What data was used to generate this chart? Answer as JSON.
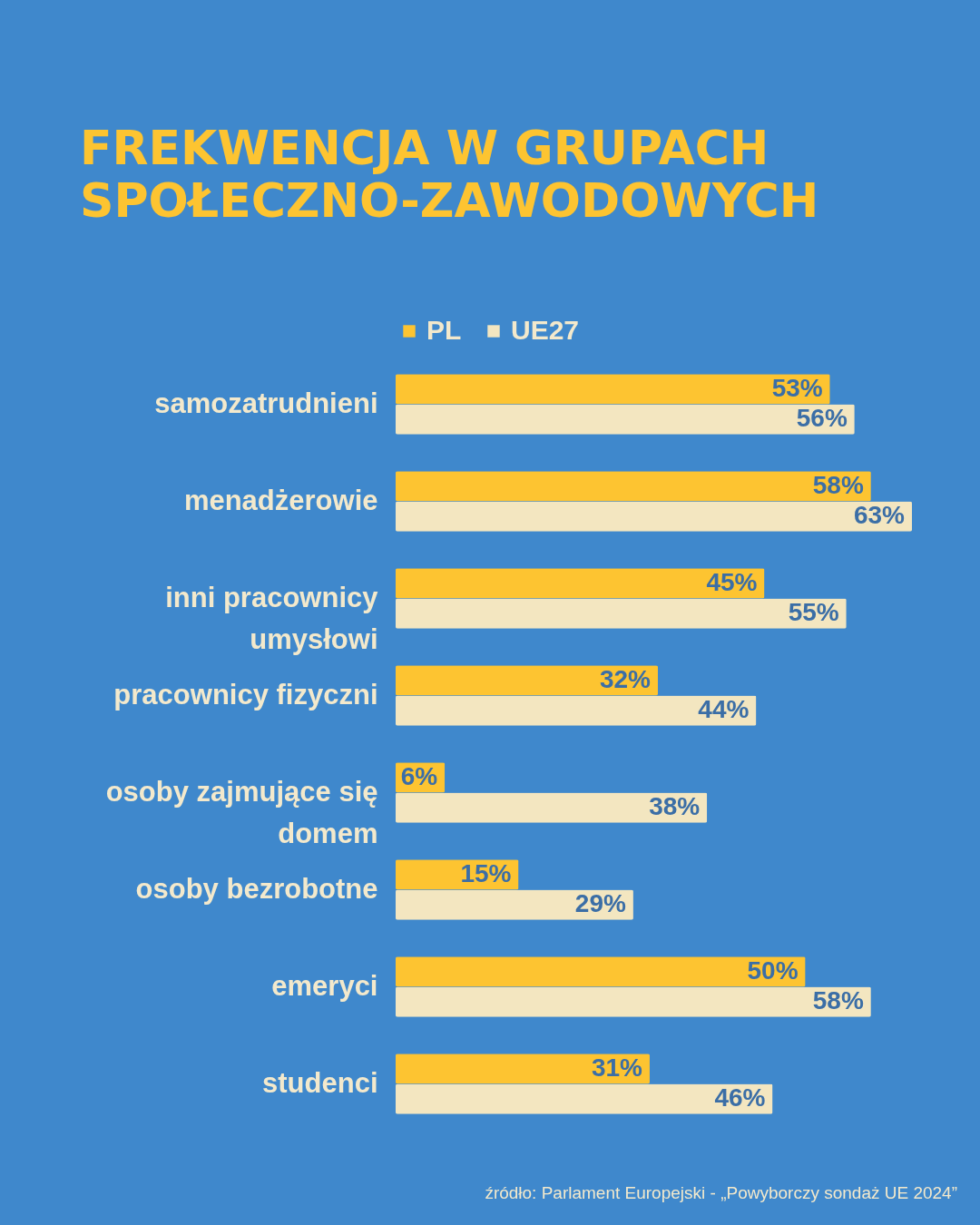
{
  "chart_data": {
    "type": "bar",
    "orientation": "horizontal",
    "title": "FREKWENCJA W GRUPACH SPOŁECZNO-ZAWODOWYCH",
    "categories": [
      "samozatrudnieni",
      "menadżerowie",
      "inni pracownicy umysłowi",
      "pracownicy fizyczni",
      "osoby zajmujące się domem",
      "osoby bezrobotne",
      "emeryci",
      "studenci"
    ],
    "series": [
      {
        "name": "PL",
        "color": "#fdc431",
        "values": [
          53,
          58,
          45,
          32,
          6,
          15,
          50,
          31
        ],
        "value_labels": [
          "53%",
          "58%",
          "45%",
          "32%",
          "6%",
          "15%",
          "50%",
          "31%"
        ]
      },
      {
        "name": "UE27",
        "color": "#f3e6c0",
        "values": [
          56,
          63,
          55,
          44,
          38,
          29,
          58,
          46
        ],
        "value_labels": [
          "56%",
          "63%",
          "55%",
          "44%",
          "38%",
          "29%",
          "58%",
          "46%"
        ]
      }
    ],
    "legend": "top left",
    "grid": false,
    "annotations": [
      "źródło: Parlament Europejski - „Powyborczy sondaż UE 2024”"
    ]
  }
}
